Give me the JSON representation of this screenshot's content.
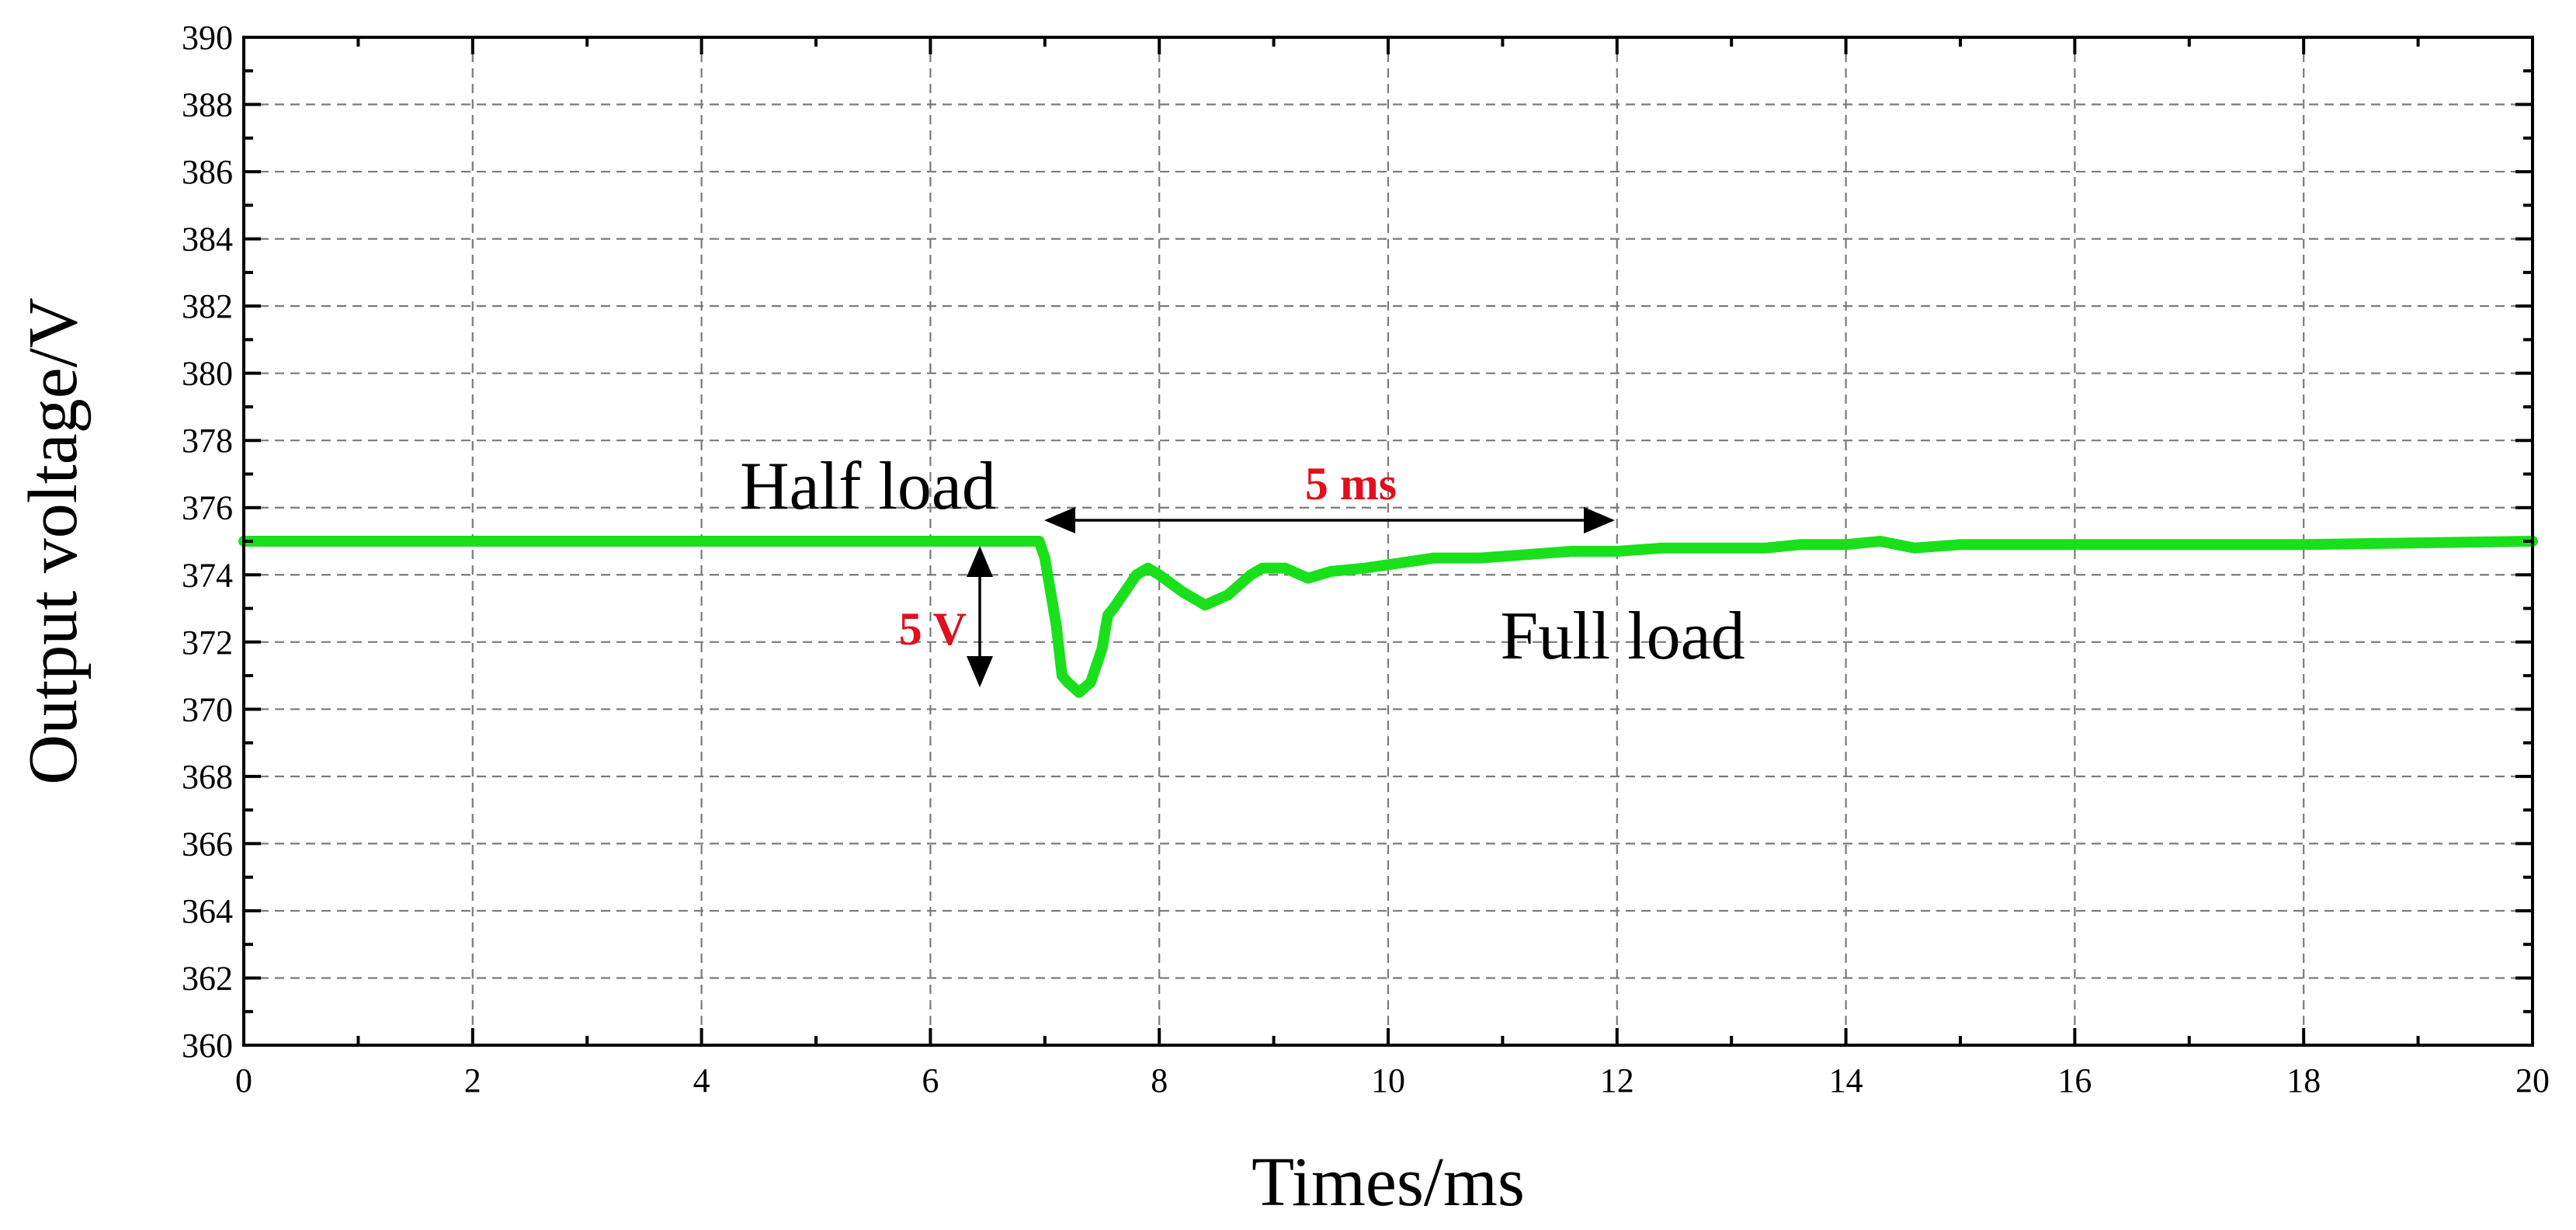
{
  "chart_data": {
    "type": "line",
    "xlabel": "Times/ms",
    "ylabel": "Output voltage/V",
    "xlim": [
      0,
      20
    ],
    "ylim": [
      360,
      390
    ],
    "xticks": [
      0,
      2,
      4,
      6,
      8,
      10,
      12,
      14,
      16,
      18,
      20
    ],
    "yticks": [
      360,
      362,
      364,
      366,
      368,
      370,
      372,
      374,
      376,
      378,
      380,
      382,
      384,
      386,
      388,
      390
    ],
    "grid": true,
    "series": [
      {
        "color": "#19e01b",
        "x": [
          0,
          6.95,
          7.0,
          7.1,
          7.15,
          7.2,
          7.3,
          7.4,
          7.5,
          7.55,
          7.6,
          7.7,
          7.8,
          7.9,
          8.0,
          8.2,
          8.4,
          8.6,
          8.8,
          8.9,
          9.1,
          9.3,
          9.5,
          9.8,
          10.0,
          10.4,
          10.8,
          11.2,
          11.6,
          12.0,
          12.4,
          12.8,
          13.2,
          13.3,
          13.6,
          14.0,
          14.3,
          14.6,
          15.0,
          16.0,
          18.0,
          20.0
        ],
        "y": [
          375.0,
          375.0,
          374.5,
          372.5,
          371.0,
          370.8,
          370.5,
          370.8,
          371.8,
          372.8,
          373.0,
          373.5,
          374.0,
          374.2,
          374.0,
          373.5,
          373.1,
          373.4,
          374.0,
          374.2,
          374.2,
          373.9,
          374.1,
          374.2,
          374.3,
          374.5,
          374.5,
          374.6,
          374.7,
          374.7,
          374.8,
          374.8,
          374.8,
          374.8,
          374.9,
          374.9,
          375.0,
          374.8,
          374.9,
          374.9,
          374.9,
          375.0
        ]
      }
    ],
    "annotations": {
      "half_load": "Half load",
      "full_load": "Full load",
      "time_span": "5 ms",
      "voltage_drop": "5 V"
    }
  }
}
